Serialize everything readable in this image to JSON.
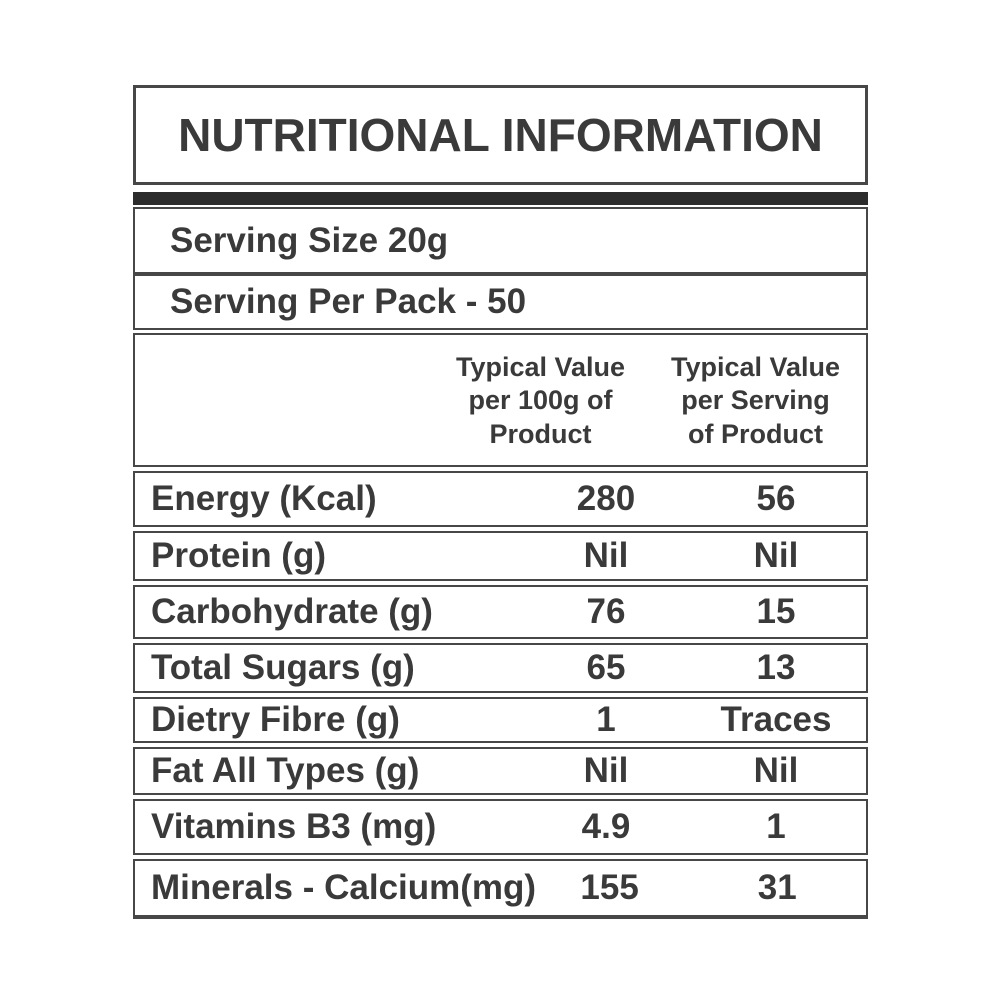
{
  "panel": {
    "title": "NUTRITIONAL INFORMATION",
    "serving_size": "Serving Size 20g",
    "serving_per_pack": "Serving Per Pack - 50",
    "column_headers": {
      "per_100g": {
        "line1": "Typical Value",
        "line2": "per 100g of",
        "line3": "Product"
      },
      "per_serving": {
        "line1": "Typical Value",
        "line2": "per Serving",
        "line3": "of Product"
      }
    },
    "rows": [
      {
        "name": "Energy (Kcal)",
        "per_100g": "280",
        "per_serving": "56"
      },
      {
        "name": "Protein (g)",
        "per_100g": "Nil",
        "per_serving": "Nil"
      },
      {
        "name": "Carbohydrate (g)",
        "per_100g": "76",
        "per_serving": "15"
      },
      {
        "name": "Total Sugars (g)",
        "per_100g": "65",
        "per_serving": "13"
      },
      {
        "name": "Dietry Fibre (g)",
        "per_100g": "1",
        "per_serving": "Traces"
      },
      {
        "name": "Fat All Types (g)",
        "per_100g": "Nil",
        "per_serving": "Nil"
      },
      {
        "name": "Vitamins B3 (mg)",
        "per_100g": "4.9",
        "per_serving": "1"
      },
      {
        "name": "Minerals - Calcium(mg)",
        "per_100g": "155",
        "per_serving": "31"
      }
    ],
    "colors": {
      "text": "#3a3a3a",
      "border": "#474747",
      "bar": "#2c2c2c",
      "background": "#ffffff"
    }
  }
}
